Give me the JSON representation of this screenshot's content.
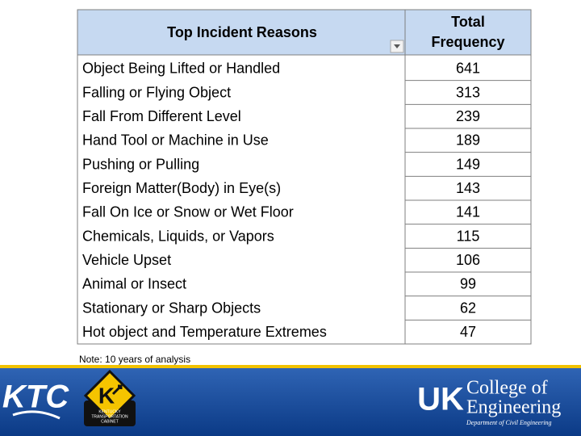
{
  "table": {
    "header": [
      "Top Incident Reasons",
      "Total Frequency"
    ],
    "rows": [
      [
        "Object Being Lifted or Handled",
        641
      ],
      [
        "Falling or Flying Object",
        313
      ],
      [
        "Fall From Different Level",
        239
      ],
      [
        "Hand Tool or Machine in Use",
        189
      ],
      [
        "Pushing or Pulling",
        149
      ],
      [
        "Foreign Matter(Body) in Eye(s)",
        143
      ],
      [
        "Fall On Ice or Snow or Wet Floor",
        141
      ],
      [
        "Chemicals, Liquids, or Vapors",
        115
      ],
      [
        "Vehicle Upset",
        106
      ],
      [
        "Animal or Insect",
        99
      ],
      [
        "Stationary or Sharp Objects",
        62
      ],
      [
        "Hot object and Temperature Extremes",
        47
      ]
    ]
  },
  "note": "Note: 10 years of analysis",
  "footer": {
    "ktc": "KTC",
    "sign_letter": "K",
    "cabinet": [
      "KENTUCKY",
      "TRANSPORTATION",
      "CABINET"
    ],
    "uk": "UK",
    "college": [
      "College of",
      "Engineering"
    ],
    "department": "Department of Civil Engineering"
  }
}
